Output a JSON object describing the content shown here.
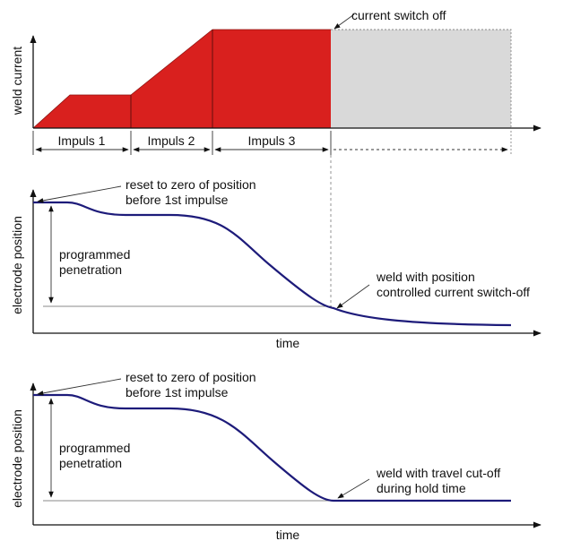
{
  "colors": {
    "current": "#d9201e",
    "hold": "#d9d9d9",
    "curve": "#1d1b7a",
    "axis": "#111111",
    "guide": "#888888"
  },
  "panel1": {
    "ylabel": "weld current",
    "switch_off_label": "current switch off",
    "impulses": [
      "Impuls 1",
      "Impuls 2",
      "Impuls 3"
    ]
  },
  "panel2": {
    "ylabel": "electrode position",
    "xlabel": "time",
    "reset_line1": "reset to zero of position",
    "reset_line2": "before 1st impulse",
    "penetration_line1": "programmed",
    "penetration_line2": "penetration",
    "weld_line1": "weld with position",
    "weld_line2": "controlled current switch-off"
  },
  "panel3": {
    "ylabel": "electrode position",
    "xlabel": "time",
    "reset_line1": "reset to zero of position",
    "reset_line2": "before 1st impulse",
    "penetration_line1": "programmed",
    "penetration_line2": "penetration",
    "weld_line1": "weld with travel cut-off",
    "weld_line2": "during hold time"
  }
}
